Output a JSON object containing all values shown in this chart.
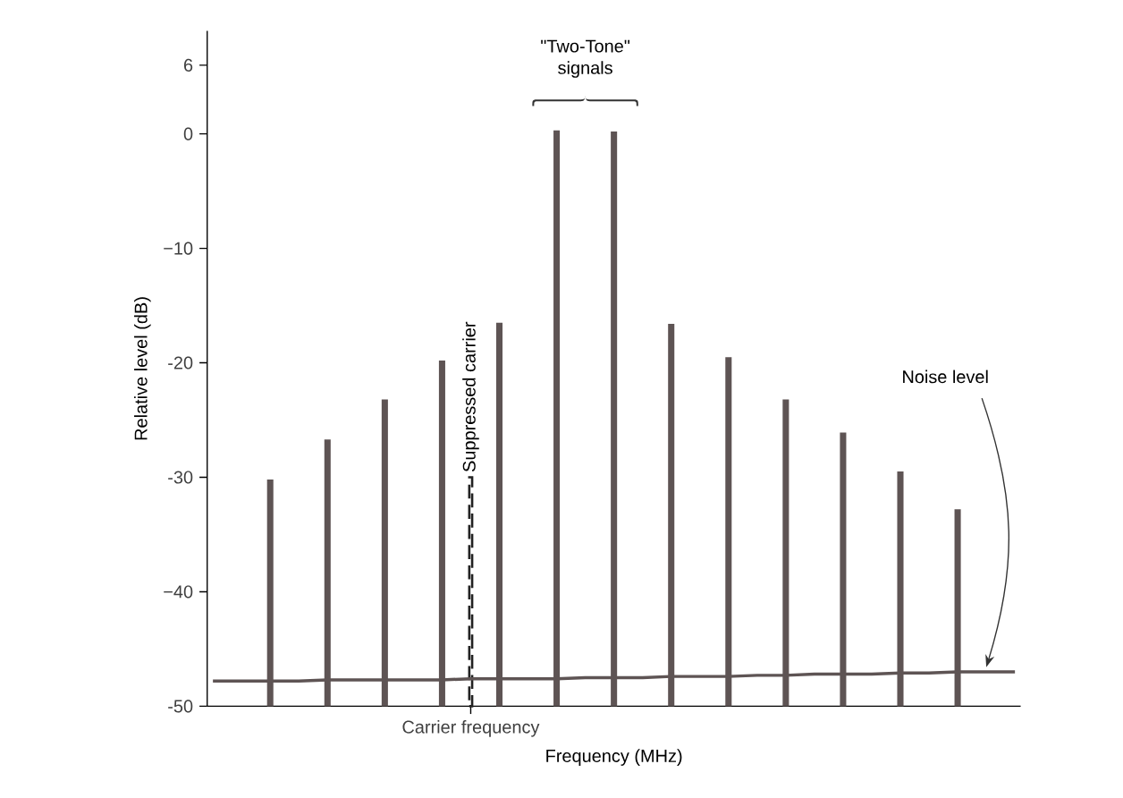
{
  "chart_data": {
    "type": "bar",
    "xlabel": "Frequency (MHz)",
    "ylabel": "Relative level (dB)",
    "categories": [
      null,
      null,
      null,
      null,
      null,
      null,
      null,
      null,
      null,
      "Carrier frequency",
      null,
      null,
      null,
      null,
      null,
      null,
      null,
      null,
      null,
      null,
      null,
      null,
      null,
      null,
      null,
      null,
      null,
      null,
      null
    ],
    "ylim": [
      -50,
      9
    ],
    "yticks": [
      {
        "value": 6,
        "label": "6"
      },
      {
        "value": 0,
        "label": "0"
      },
      {
        "value": -10,
        "label": "−10"
      },
      {
        "value": -20,
        "label": "-20"
      },
      {
        "value": -30,
        "label": "-30"
      },
      {
        "value": -40,
        "label": "−40"
      },
      {
        "value": -50,
        "label": "-50"
      }
    ],
    "series": [
      {
        "color": "#5e5454",
        "base": [
          null,
          null,
          -50,
          null,
          -50,
          null,
          -50,
          null,
          -50,
          null,
          -50,
          null,
          -50,
          null,
          -50,
          null,
          -50,
          null,
          -50,
          null,
          -50,
          null,
          -50,
          null,
          -50,
          null,
          -50,
          null,
          null
        ],
        "values": [
          null,
          null,
          19.8,
          null,
          23.3,
          null,
          26.8,
          null,
          30.2,
          null,
          33.5,
          null,
          50.3,
          null,
          50.2,
          null,
          33.4,
          null,
          30.5,
          null,
          26.8,
          null,
          23.9,
          null,
          20.5,
          null,
          17.2,
          null,
          null
        ]
      },
      {
        "name": "Suppressed carrier",
        "line_style": "dashed",
        "color": "#222222",
        "base": [
          null,
          null,
          null,
          null,
          null,
          null,
          null,
          null,
          null,
          -50,
          null,
          null,
          null,
          null,
          null,
          null,
          null,
          null,
          null,
          null,
          null,
          null,
          null,
          null,
          null,
          null,
          null,
          null,
          null
        ],
        "values": [
          null,
          null,
          null,
          null,
          null,
          null,
          null,
          null,
          null,
          20,
          null,
          null,
          null,
          null,
          null,
          null,
          null,
          null,
          null,
          null,
          null,
          null,
          null,
          null,
          null,
          null,
          null,
          null,
          null
        ]
      },
      {
        "type": "line",
        "color": "#5e5454",
        "values": [
          -47.8,
          -47.8,
          -47.8,
          -47.8,
          -47.7,
          -47.7,
          -47.7,
          -47.7,
          -47.7,
          -47.6,
          -47.6,
          -47.6,
          -47.6,
          -47.5,
          -47.5,
          -47.5,
          -47.4,
          -47.4,
          -47.4,
          -47.3,
          -47.3,
          -47.2,
          -47.2,
          -47.2,
          -47.1,
          -47.1,
          -47.0,
          -47.0,
          -47.0
        ]
      }
    ],
    "annotations": [
      "\"Two-Tone\" signals",
      "Noise level"
    ]
  }
}
